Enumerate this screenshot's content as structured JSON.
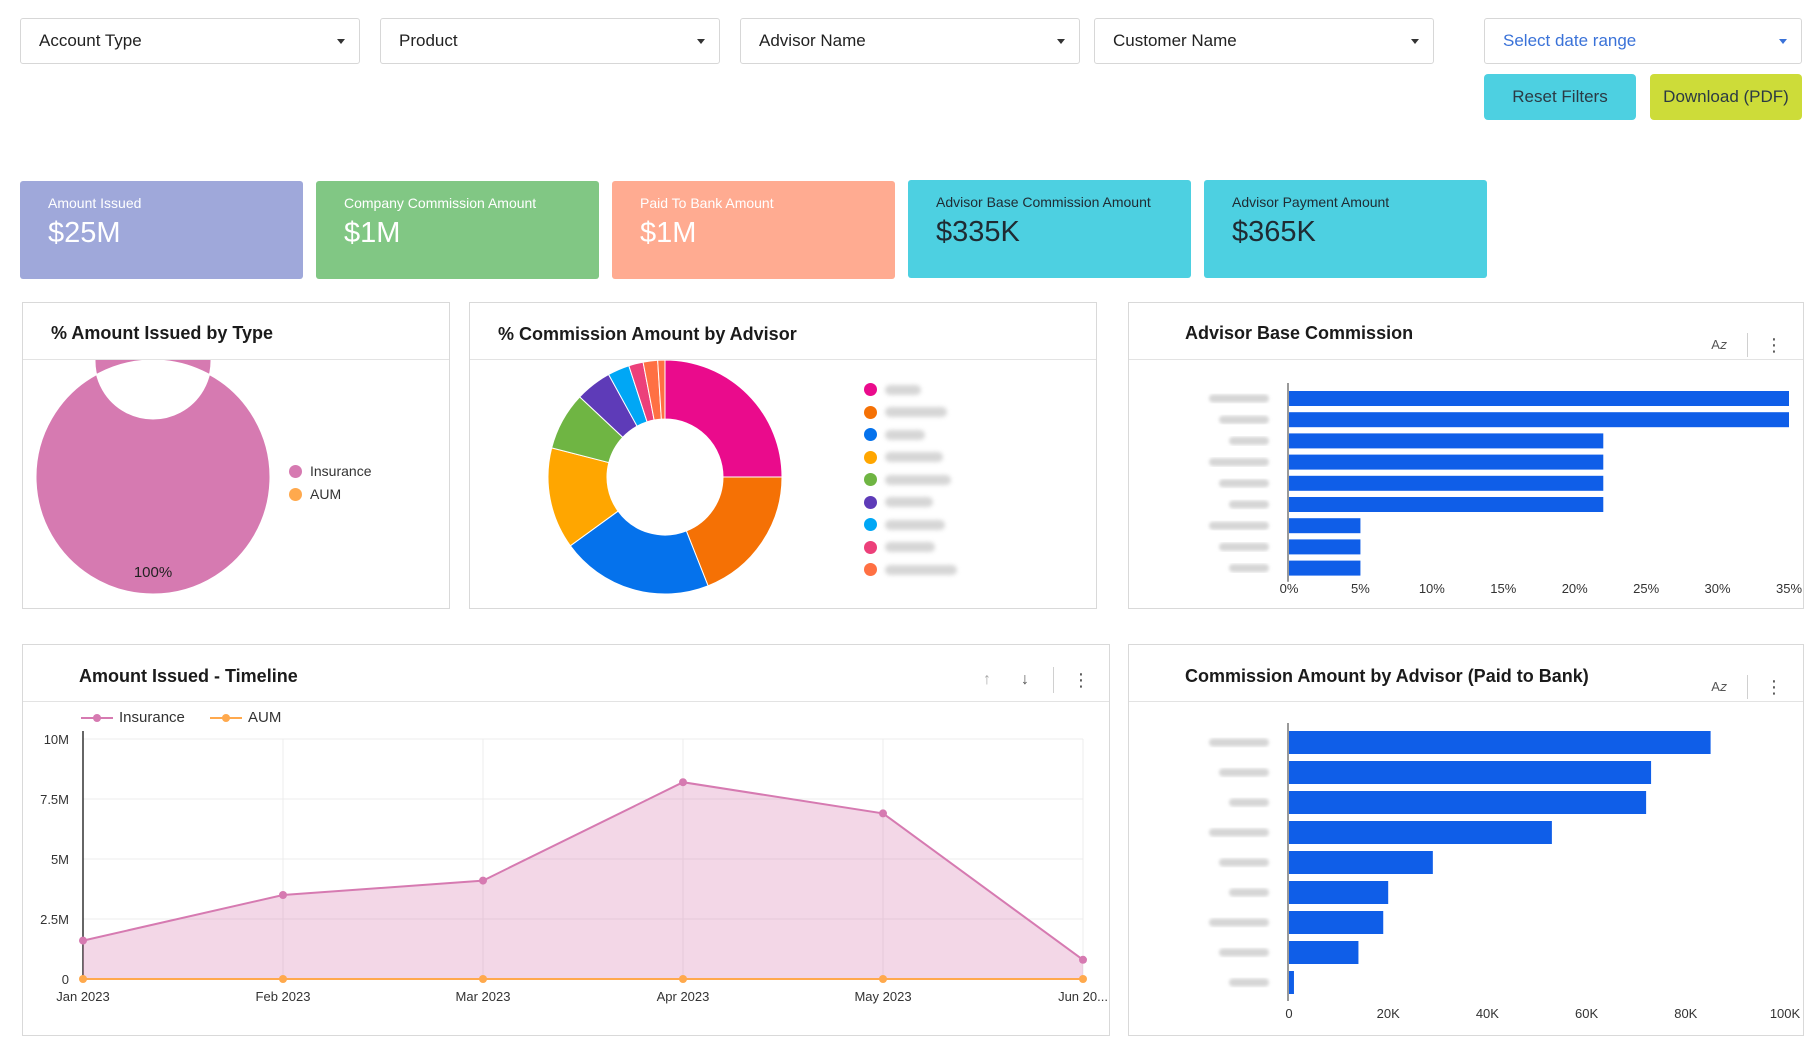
{
  "filters": {
    "account_type": "Account Type",
    "product": "Product",
    "advisor_name": "Advisor Name",
    "customer_name": "Customer Name",
    "date_range": "Select date range"
  },
  "buttons": {
    "reset": "Reset Filters",
    "download": "Download (PDF)"
  },
  "kpis": [
    {
      "label": "Amount Issued",
      "value": "$25M",
      "color": "#9fa8da"
    },
    {
      "label": "Company Commission Amount",
      "value": "$1M",
      "color": "#81c784"
    },
    {
      "label": "Paid To Bank Amount",
      "value": "$1M",
      "color": "#ffab91"
    },
    {
      "label": "Advisor Base Commission Amount",
      "value": "$335K",
      "color": "#4dd0e1"
    },
    {
      "label": "Advisor Payment Amount",
      "value": "$365K",
      "color": "#4dd0e1"
    }
  ],
  "panels": {
    "issued_by_type": {
      "title": "% Amount Issued by Type",
      "chart_data": {
        "type": "pie",
        "categories": [
          "Insurance",
          "AUM"
        ],
        "values": [
          100,
          0
        ],
        "colors": [
          "#d67ab1",
          "#ffa94d"
        ],
        "data_label": "100%"
      }
    },
    "commission_by_advisor": {
      "title": "% Commission Amount by Advisor",
      "chart_data": {
        "type": "pie",
        "values": [
          25,
          19,
          21,
          14,
          8,
          5,
          3,
          2,
          2,
          1
        ],
        "colors": [
          "#ea0b8c",
          "#f57105",
          "#0572ec",
          "#ffa600",
          "#6fb543",
          "#5e3bb8",
          "#00a7f5",
          "#ec407a",
          "#ff7043",
          "#ff7043"
        ],
        "legend_colors": [
          "#ea0b8c",
          "#f57105",
          "#0572ec",
          "#ffa600",
          "#6fb543",
          "#5e3bb8",
          "#00a7f5",
          "#ec407a",
          "#ff7043"
        ]
      }
    },
    "advisor_base_commission": {
      "title": "Advisor Base Commission",
      "chart_data": {
        "type": "bar",
        "orientation": "horizontal",
        "values": [
          35,
          35,
          22,
          22,
          22,
          22,
          5,
          5,
          5
        ],
        "xlim": [
          0,
          35
        ],
        "ticks": [
          "0%",
          "5%",
          "10%",
          "15%",
          "20%",
          "25%",
          "30%",
          "35%"
        ],
        "color": "#0f5ee8"
      }
    },
    "timeline": {
      "title": "Amount Issued - Timeline",
      "chart_data": {
        "type": "area",
        "x": [
          "Jan 2023",
          "Feb 2023",
          "Mar 2023",
          "Apr 2023",
          "May 2023",
          "Jun 20..."
        ],
        "series": [
          {
            "name": "Insurance",
            "values": [
              1.6,
              3.5,
              4.1,
              8.2,
              6.9,
              0.8
            ],
            "color": "#d67ab1"
          },
          {
            "name": "AUM",
            "values": [
              0,
              0,
              0,
              0,
              0,
              0
            ],
            "color": "#ffa94d"
          }
        ],
        "ylim": [
          0,
          10
        ],
        "yticks": [
          "0",
          "2.5M",
          "5M",
          "7.5M",
          "10M"
        ]
      }
    },
    "commission_paid_to_bank": {
      "title": "Commission Amount by Advisor (Paid to Bank)",
      "chart_data": {
        "type": "bar",
        "orientation": "horizontal",
        "values": [
          85,
          73,
          72,
          53,
          29,
          20,
          19,
          14,
          1
        ],
        "xlim": [
          0,
          100
        ],
        "ticks": [
          "0",
          "20K",
          "40K",
          "60K",
          "80K",
          "100K"
        ],
        "color": "#0f5ee8"
      }
    }
  },
  "icons": {
    "sort": "sort-az-icon",
    "more": "more-vert-icon",
    "up": "arrow-up-icon",
    "down": "arrow-down-icon"
  }
}
